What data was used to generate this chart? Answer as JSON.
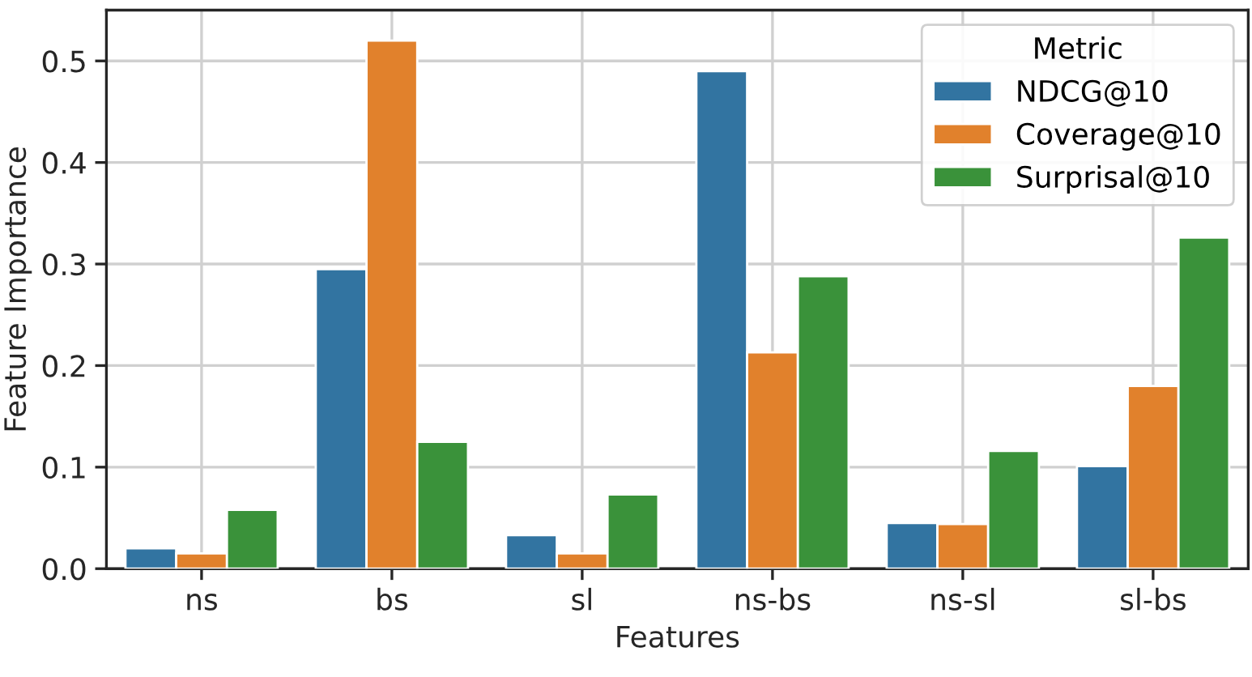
{
  "chart_data": {
    "type": "bar",
    "xlabel": "Features",
    "ylabel": "Feature Importance",
    "legend_title": "Metric",
    "categories": [
      "ns",
      "bs",
      "sl",
      "ns-bs",
      "ns-sl",
      "sl-bs"
    ],
    "series": [
      {
        "name": "NDCG@10",
        "color": "#3274a1",
        "values": [
          0.02,
          0.295,
          0.033,
          0.49,
          0.045,
          0.101
        ]
      },
      {
        "name": "Coverage@10",
        "color": "#e1812c",
        "values": [
          0.015,
          0.52,
          0.015,
          0.213,
          0.044,
          0.18
        ]
      },
      {
        "name": "Surprisal@10",
        "color": "#3a923a",
        "values": [
          0.058,
          0.125,
          0.073,
          0.288,
          0.116,
          0.326
        ]
      }
    ],
    "ylim": [
      0,
      0.55
    ],
    "yticks": [
      {
        "value": 0,
        "label": "0.0"
      },
      0.1,
      0.2,
      0.3,
      0.4,
      0.5
    ],
    "grid": true,
    "legend": "top right"
  }
}
